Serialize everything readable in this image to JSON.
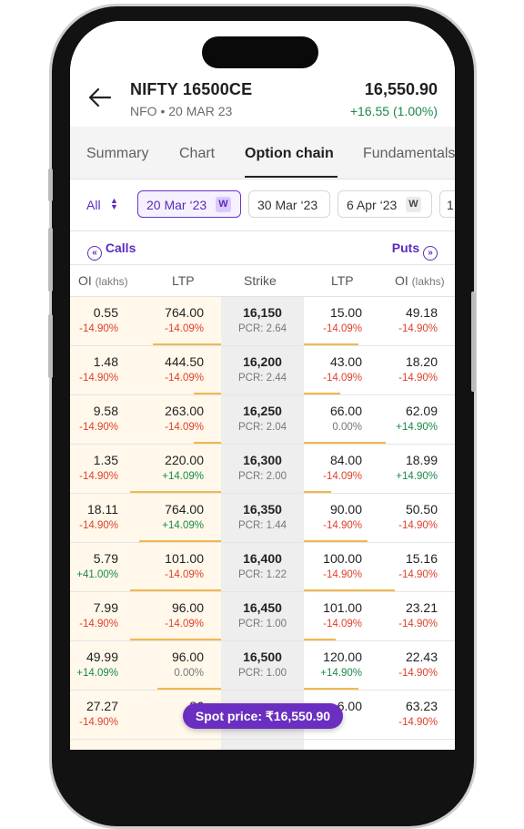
{
  "header": {
    "title": "NIFTY 16500CE",
    "subtitle": "NFO • 20 MAR 23",
    "price": "16,550.90",
    "change": "+16.55 (1.00%)"
  },
  "tabs": [
    "Summary",
    "Chart",
    "Option chain",
    "Fundamentals"
  ],
  "active_tab": "Option chain",
  "filters": {
    "all_label": "All",
    "expiries": [
      {
        "label": "20 Mar ‘23",
        "badge": "W",
        "selected": true
      },
      {
        "label": "30 Mar ‘23",
        "badge": "",
        "selected": false
      },
      {
        "label": "6 Apr ‘23",
        "badge": "W",
        "selected": false
      },
      {
        "label": "1",
        "badge": "",
        "selected": false
      }
    ]
  },
  "chain_header": {
    "calls": "Calls",
    "puts": "Puts"
  },
  "columns": {
    "oi": "OI",
    "oi_unit": "(lakhs)",
    "ltp": "LTP",
    "strike": "Strike"
  },
  "rows": [
    {
      "call_oi": "0.55",
      "call_oi_chg": "-14.90%",
      "call_ltp": "764.00",
      "call_ltp_chg": "-14.09%",
      "strike": "16,150",
      "pcr": "PCR: 2.64",
      "put_ltp": "15.00",
      "put_ltp_chg": "-14.09%",
      "put_oi": "49.18",
      "put_oi_chg": "-14.90%",
      "call_bar": 0.75,
      "put_bar": 0.6
    },
    {
      "call_oi": "1.48",
      "call_oi_chg": "-14.90%",
      "call_ltp": "444.50",
      "call_ltp_chg": "-14.09%",
      "strike": "16,200",
      "pcr": "PCR: 2.44",
      "put_ltp": "43.00",
      "put_ltp_chg": "-14.09%",
      "put_oi": "18.20",
      "put_oi_chg": "-14.90%",
      "call_bar": 0.3,
      "put_bar": 0.4
    },
    {
      "call_oi": "9.58",
      "call_oi_chg": "-14.90%",
      "call_ltp": "263.00",
      "call_ltp_chg": "-14.09%",
      "strike": "16,250",
      "pcr": "PCR: 2.04",
      "put_ltp": "66.00",
      "put_ltp_chg": "0.00%",
      "put_oi": "62.09",
      "put_oi_chg": "+14.90%",
      "call_bar": 0.3,
      "put_bar": 0.9
    },
    {
      "call_oi": "1.35",
      "call_oi_chg": "-14.90%",
      "call_ltp": "220.00",
      "call_ltp_chg": "+14.09%",
      "strike": "16,300",
      "pcr": "PCR: 2.00",
      "put_ltp": "84.00",
      "put_ltp_chg": "-14.09%",
      "put_oi": "18.99",
      "put_oi_chg": "+14.90%",
      "call_bar": 1.0,
      "put_bar": 0.3
    },
    {
      "call_oi": "18.11",
      "call_oi_chg": "-14.90%",
      "call_ltp": "764.00",
      "call_ltp_chg": "+14.09%",
      "strike": "16,350",
      "pcr": "PCR: 1.44",
      "put_ltp": "90.00",
      "put_ltp_chg": "-14.90%",
      "put_oi": "50.50",
      "put_oi_chg": "-14.90%",
      "call_bar": 0.9,
      "put_bar": 0.7
    },
    {
      "call_oi": "5.79",
      "call_oi_chg": "+41.00%",
      "call_ltp": "101.00",
      "call_ltp_chg": "-14.09%",
      "strike": "16,400",
      "pcr": "PCR: 1.22",
      "put_ltp": "100.00",
      "put_ltp_chg": "-14.90%",
      "put_oi": "15.16",
      "put_oi_chg": "-14.90%",
      "call_bar": 1.0,
      "put_bar": 1.0
    },
    {
      "call_oi": "7.99",
      "call_oi_chg": "-14.90%",
      "call_ltp": "96.00",
      "call_ltp_chg": "-14.09%",
      "strike": "16,450",
      "pcr": "PCR: 1.00",
      "put_ltp": "101.00",
      "put_ltp_chg": "-14.09%",
      "put_oi": "23.21",
      "put_oi_chg": "-14.90%",
      "call_bar": 1.0,
      "put_bar": 0.35
    },
    {
      "call_oi": "49.99",
      "call_oi_chg": "+14.09%",
      "call_ltp": "96.00",
      "call_ltp_chg": "0.00%",
      "strike": "16,500",
      "pcr": "PCR: 1.00",
      "put_ltp": "120.00",
      "put_ltp_chg": "+14.90%",
      "put_oi": "22.43",
      "put_oi_chg": "-14.90%",
      "call_bar": 0.7,
      "put_bar": 0.6
    },
    {
      "call_oi": "27.27",
      "call_oi_chg": "-14.90%",
      "call_ltp": "86",
      "call_ltp_chg": "",
      "strike": "",
      "pcr": "",
      "put_ltp": "6.00",
      "put_ltp_chg": "",
      "put_oi": "63.23",
      "put_oi_chg": "-14.90%",
      "call_bar": 0,
      "put_bar": 0
    }
  ],
  "spot_price": "Spot price: ₹16,550.90",
  "colors": {
    "accent": "#5b2bbf",
    "red": "#e0402a",
    "green": "#1a8a4a",
    "bar": "#f3b84c",
    "call_bg": "#fff8eb"
  }
}
